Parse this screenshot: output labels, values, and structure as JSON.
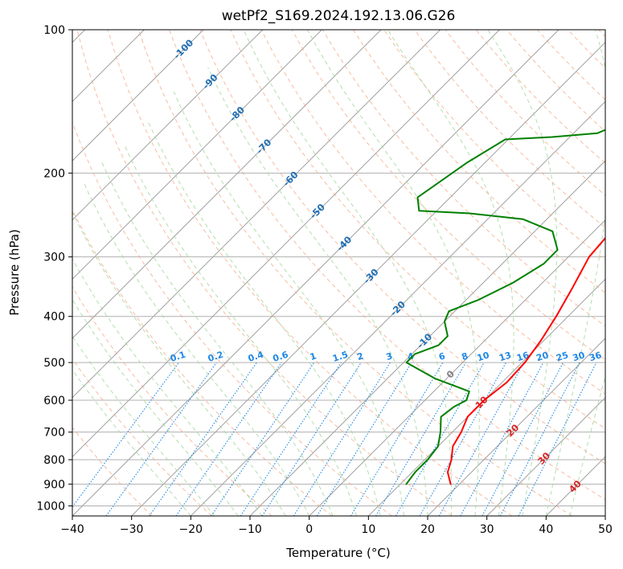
{
  "chart_data": {
    "type": "line",
    "title": "wetPf2_S169.2024.192.13.06.G26",
    "xlabel": "Temperature (°C)",
    "ylabel": "Pressure (hPa)",
    "xlim": [
      -40,
      50
    ],
    "ylim": [
      1050,
      100
    ],
    "y_scale": "log",
    "grid": true,
    "x_ticks": [
      "−40",
      "−30",
      "−20",
      "−10",
      "0",
      "10",
      "20",
      "30",
      "40",
      "50"
    ],
    "y_ticks": [
      {
        "p": 100,
        "label": "100"
      },
      {
        "p": 200,
        "label": "200"
      },
      {
        "p": 300,
        "label": "300"
      },
      {
        "p": 400,
        "label": "400"
      },
      {
        "p": 500,
        "label": "500"
      },
      {
        "p": 600,
        "label": "600"
      },
      {
        "p": 700,
        "label": "700"
      },
      {
        "p": 800,
        "label": "800"
      },
      {
        "p": 900,
        "label": "900"
      },
      {
        "p": 1000,
        "label": "1000"
      }
    ],
    "series": [
      {
        "color": "#ff0000",
        "points": [
          [
            18.5,
            900
          ],
          [
            16.0,
            850
          ],
          [
            14.5,
            800
          ],
          [
            12.5,
            750
          ],
          [
            11.5,
            700
          ],
          [
            10.0,
            650
          ],
          [
            10.0,
            600
          ],
          [
            10.8,
            550
          ],
          [
            10.5,
            500
          ],
          [
            9.5,
            450
          ],
          [
            8.0,
            400
          ],
          [
            6.0,
            350
          ],
          [
            3.5,
            300
          ],
          [
            3.0,
            270
          ],
          [
            4.5,
            245
          ],
          [
            9.5,
            225
          ],
          [
            14.5,
            205
          ],
          [
            18.0,
            185
          ],
          [
            23.0,
            160
          ],
          [
            28.0,
            135
          ],
          [
            31.5,
            120
          ],
          [
            33.5,
            110
          ],
          [
            34.0,
            100
          ]
        ]
      },
      {
        "color": "#008000",
        "points": [
          [
            11.0,
            900
          ],
          [
            10.5,
            850
          ],
          [
            10.5,
            800
          ],
          [
            10.0,
            750
          ],
          [
            8.0,
            700
          ],
          [
            5.5,
            650
          ],
          [
            6.0,
            620
          ],
          [
            7.0,
            600
          ],
          [
            6.0,
            575
          ],
          [
            -2.0,
            540
          ],
          [
            -9.5,
            500
          ],
          [
            -9.5,
            480
          ],
          [
            -7.0,
            460
          ],
          [
            -7.0,
            440
          ],
          [
            -10.0,
            410
          ],
          [
            -11.0,
            390
          ],
          [
            -8.0,
            370
          ],
          [
            -5.0,
            340
          ],
          [
            -3.0,
            310
          ],
          [
            -3.0,
            290
          ],
          [
            -7.0,
            265
          ],
          [
            -14.0,
            250
          ],
          [
            -24.0,
            243
          ],
          [
            -33.0,
            240
          ],
          [
            -35.5,
            225
          ],
          [
            -34.5,
            210
          ],
          [
            -33.0,
            190
          ],
          [
            -30.5,
            170
          ],
          [
            -23.0,
            168
          ],
          [
            -16.0,
            165
          ],
          [
            -13.0,
            155
          ],
          [
            -9.5,
            145
          ],
          [
            -6.5,
            130
          ],
          [
            -3.0,
            115
          ],
          [
            0.5,
            100
          ]
        ]
      }
    ],
    "isotherm_labels": [
      {
        "t": -100,
        "label": "-100"
      },
      {
        "t": -90,
        "label": "-90"
      },
      {
        "t": -80,
        "label": "-80"
      },
      {
        "t": -70,
        "label": "-70"
      },
      {
        "t": -60,
        "label": "-60"
      },
      {
        "t": -50,
        "label": "-50"
      },
      {
        "t": -40,
        "label": "-40"
      },
      {
        "t": -30,
        "label": "-30"
      },
      {
        "t": -20,
        "label": "-20"
      },
      {
        "t": -10,
        "label": "-10"
      }
    ],
    "isotherm_warm_labels": [
      {
        "t": 0,
        "label": "0",
        "color": "#808080"
      },
      {
        "t": 10,
        "label": "10",
        "color": "#d62728"
      },
      {
        "t": 20,
        "label": "20",
        "color": "#d62728"
      },
      {
        "t": 30,
        "label": "30",
        "color": "#d62728"
      },
      {
        "t": 40,
        "label": "40",
        "color": "#d62728"
      }
    ],
    "mixing_ratio_labels": [
      "0.1",
      "0.2",
      "0.4",
      "0.6",
      "1",
      "1.5",
      "2",
      "3",
      "4",
      "6",
      "8",
      "10",
      "13",
      "16",
      "20",
      "25",
      "30",
      "36"
    ],
    "colors": {
      "temperature": "#ff0000",
      "dewpoint": "#008000",
      "isotherm": "#a0a0a0",
      "dry_adiabat": "#f4a582",
      "moist_adiabat": "#a6d8a0",
      "mixing_ratio": "#1e88e5",
      "isotherm_label": "#1f6fb4"
    }
  }
}
